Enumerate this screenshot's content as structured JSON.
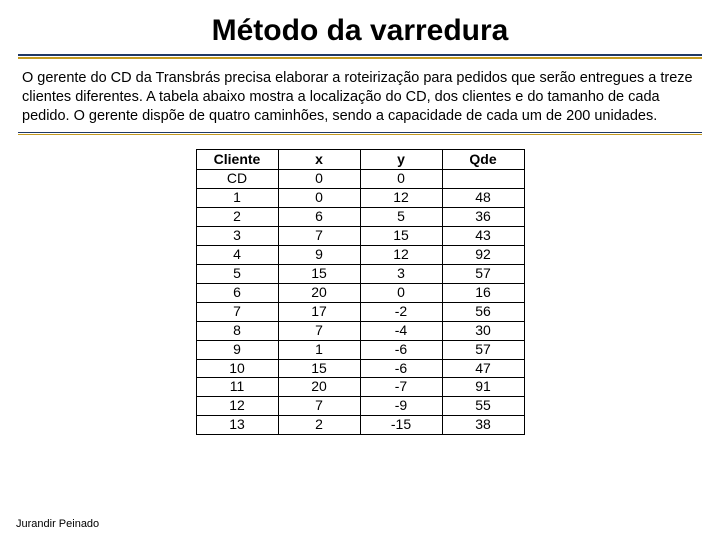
{
  "title": "Método da varredura",
  "description": "O gerente do CD da Transbrás precisa elaborar a roteirização para pedidos que serão entregues a treze clientes diferentes. A tabela abaixo mostra a localização do CD, dos clientes e do tamanho de cada pedido. O gerente dispõe de quatro caminhões, sendo a capacidade de cada um de 200 unidades.",
  "table": {
    "columns": [
      "Cliente",
      "x",
      "y",
      "Qde"
    ],
    "rows": [
      [
        "CD",
        "0",
        "0",
        ""
      ],
      [
        "1",
        "0",
        "12",
        "48"
      ],
      [
        "2",
        "6",
        "5",
        "36"
      ],
      [
        "3",
        "7",
        "15",
        "43"
      ],
      [
        "4",
        "9",
        "12",
        "92"
      ],
      [
        "5",
        "15",
        "3",
        "57"
      ],
      [
        "6",
        "20",
        "0",
        "16"
      ],
      [
        "7",
        "17",
        "-2",
        "56"
      ],
      [
        "8",
        "7",
        "-4",
        "30"
      ],
      [
        "9",
        "1",
        "-6",
        "57"
      ],
      [
        "10",
        "15",
        "-6",
        "47"
      ],
      [
        "11",
        "20",
        "-7",
        "91"
      ],
      [
        "12",
        "7",
        "-9",
        "55"
      ],
      [
        "13",
        "2",
        "-15",
        "38"
      ]
    ],
    "border_color": "#000000",
    "font_size": 14
  },
  "footer": "Jurandir Peinado",
  "colors": {
    "navy": "#203864",
    "gold": "#c49a1f",
    "background": "#ffffff",
    "text": "#000000"
  }
}
